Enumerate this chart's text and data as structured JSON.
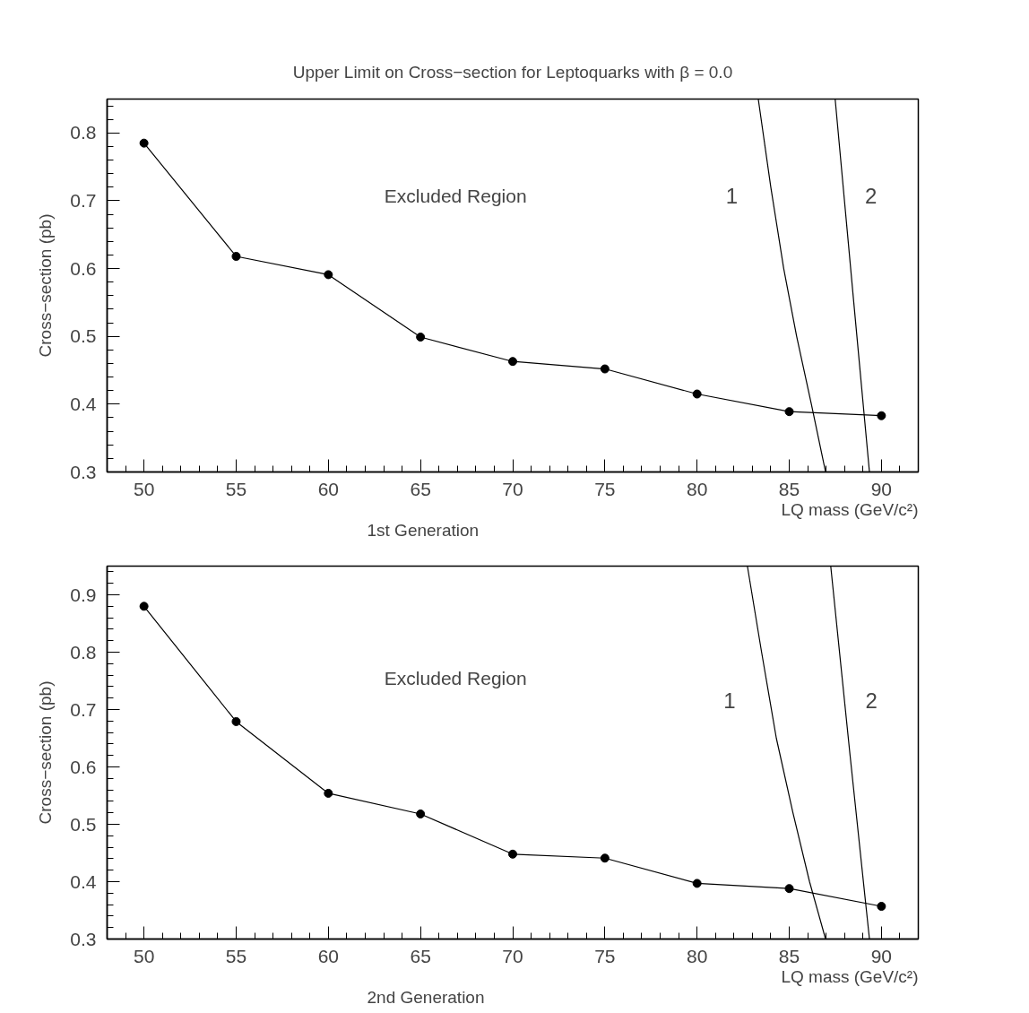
{
  "chart_data": [
    {
      "type": "line",
      "title": "Upper Limit on Cross−section for Leptoquarks with β = 0.0",
      "xlabel": "LQ mass (GeV/c²)",
      "ylabel": "Cross−section (pb)",
      "xlim": [
        48,
        92
      ],
      "ylim": [
        0.3,
        0.85
      ],
      "xticks": [
        50,
        55,
        60,
        65,
        70,
        75,
        80,
        85,
        90
      ],
      "yticks": [
        0.3,
        0.4,
        0.5,
        0.6,
        0.7,
        0.8
      ],
      "grid": false,
      "x": [
        50,
        55,
        60,
        65,
        70,
        75,
        80,
        85,
        90
      ],
      "series": [
        {
          "color": "#000000",
          "marker": "circle",
          "values": [
            0.785,
            0.618,
            0.591,
            0.499,
            0.463,
            0.452,
            0.415,
            0.389,
            0.383
          ]
        },
        {
          "name": "1",
          "color": "#000000",
          "marker": "none",
          "x": [
            83.32,
            84.0,
            84.7,
            85.4,
            86.2,
            86.97
          ],
          "values": [
            0.85,
            0.72,
            0.6,
            0.5,
            0.4,
            0.3
          ]
        },
        {
          "name": "2",
          "color": "#000000",
          "marker": "none",
          "x": [
            87.49,
            88.5,
            89.35
          ],
          "values": [
            0.85,
            0.55,
            0.3
          ]
        }
      ],
      "annotations": [
        "1st Generation",
        "Excluded Region"
      ]
    },
    {
      "type": "line",
      "xlabel": "LQ mass (GeV/c²)",
      "ylabel": "Cross−section (pb)",
      "xlim": [
        48,
        92
      ],
      "ylim": [
        0.3,
        0.95
      ],
      "xticks": [
        50,
        55,
        60,
        65,
        70,
        75,
        80,
        85,
        90
      ],
      "yticks": [
        0.3,
        0.4,
        0.5,
        0.6,
        0.7,
        0.8,
        0.9
      ],
      "grid": false,
      "x": [
        50,
        55,
        60,
        65,
        70,
        75,
        80,
        85,
        90
      ],
      "series": [
        {
          "color": "#000000",
          "marker": "circle",
          "values": [
            0.88,
            0.679,
            0.554,
            0.518,
            0.448,
            0.441,
            0.397,
            0.388,
            0.357
          ]
        },
        {
          "name": "1",
          "color": "#000000",
          "marker": "none",
          "x": [
            82.73,
            83.5,
            84.3,
            85.2,
            86.1,
            86.97
          ],
          "values": [
            0.95,
            0.8,
            0.65,
            0.52,
            0.4,
            0.3
          ]
        },
        {
          "name": "2",
          "color": "#000000",
          "marker": "none",
          "x": [
            87.25,
            88.3,
            89.35
          ],
          "values": [
            0.95,
            0.62,
            0.3
          ]
        }
      ],
      "annotations": [
        "2nd Generation",
        "Excluded Region"
      ]
    }
  ]
}
